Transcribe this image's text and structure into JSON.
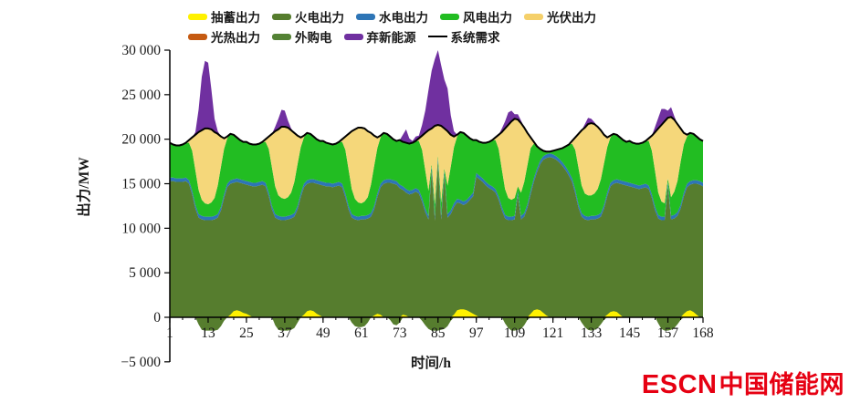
{
  "logo": {
    "escn": "ESCN",
    "chinese": "中国储能网"
  },
  "colors": {
    "axis": "#000000",
    "tick_text": "#1a1a1a",
    "logo_red": "#E60012",
    "pumped": "#FFF100",
    "thermal": "#567D2E",
    "hydro": "#2E75B6",
    "wind": "#22BD22",
    "pv": "#F5D77A",
    "csp": "#C55A11",
    "purchased": "#548235",
    "curtailed": "#7030A0",
    "demand": "#000000"
  },
  "legend": {
    "rows": [
      [
        {
          "label": "抽蓄出力",
          "color": "#FFF100",
          "shape": "box"
        },
        {
          "label": "火电出力",
          "color": "#567D2E",
          "shape": "box"
        },
        {
          "label": "水电出力",
          "color": "#2E75B6",
          "shape": "box"
        },
        {
          "label": "风电出力",
          "color": "#22BD22",
          "shape": "box"
        },
        {
          "label": "光伏出力",
          "color": "#F5D06A",
          "shape": "box"
        }
      ],
      [
        {
          "label": "光热出力",
          "color": "#C55A11",
          "shape": "box"
        },
        {
          "label": "外购电",
          "color": "#548235",
          "shape": "box"
        },
        {
          "label": "弃新能源",
          "color": "#7030A0",
          "shape": "box"
        },
        {
          "label": "系统需求",
          "color": "#000000",
          "shape": "line"
        }
      ]
    ]
  },
  "chart_data": {
    "type": "area",
    "stacked": true,
    "title": "",
    "xlabel": "时间/h",
    "ylabel": "出力/MW",
    "x_start": 1,
    "x_count": 168,
    "xlim": [
      1,
      168
    ],
    "ylim": [
      -5000,
      30000
    ],
    "grid": false,
    "legend_position": "top",
    "x_ticks": [
      1,
      13,
      25,
      37,
      49,
      61,
      73,
      85,
      97,
      109,
      121,
      133,
      145,
      157,
      168
    ],
    "x_minor_tick_step": 4,
    "y_ticks": [
      {
        "value": 30000,
        "label": "30 000"
      },
      {
        "value": 25000,
        "label": "25 000"
      },
      {
        "value": 20000,
        "label": "20 000"
      },
      {
        "value": 15000,
        "label": "15 000"
      },
      {
        "value": 10000,
        "label": "10 000"
      },
      {
        "value": 5000,
        "label": "5 000"
      },
      {
        "value": 0,
        "label": "0"
      },
      {
        "value": -5000,
        "label": "−5 000"
      }
    ],
    "series": [
      {
        "key": "pumped",
        "name": "抽蓄出力",
        "role": "pumped",
        "color": "#FFF100",
        "values": [
          0,
          0,
          0,
          0,
          0,
          0,
          0,
          0,
          0,
          -800,
          -1400,
          -1500,
          -1500,
          -1500,
          -1500,
          -1400,
          -1000,
          -400,
          0,
          300,
          700,
          800,
          700,
          500,
          400,
          200,
          0,
          0,
          0,
          0,
          0,
          0,
          0,
          -900,
          -1400,
          -1500,
          -1500,
          -1500,
          -1400,
          -1200,
          -600,
          0,
          300,
          700,
          800,
          700,
          400,
          200,
          0,
          0,
          0,
          0,
          0,
          0,
          0,
          0,
          0,
          -600,
          -1000,
          -1100,
          -1100,
          -1000,
          -600,
          0,
          200,
          400,
          300,
          0,
          0,
          -300,
          -800,
          -900,
          -600,
          300,
          200,
          0,
          0,
          0,
          0,
          -400,
          -900,
          -1300,
          -1500,
          -1500,
          -1500,
          -1400,
          -1300,
          -1000,
          -400,
          300,
          800,
          900,
          900,
          800,
          600,
          400,
          200,
          0,
          0,
          0,
          0,
          0,
          0,
          0,
          0,
          -700,
          -1200,
          -1500,
          -1500,
          -1400,
          -1300,
          -900,
          -300,
          400,
          800,
          900,
          800,
          500,
          200,
          0,
          0,
          0,
          0,
          0,
          0,
          0,
          0,
          0,
          0,
          -600,
          -1100,
          -1400,
          -1500,
          -1400,
          -1200,
          -800,
          -300,
          300,
          600,
          700,
          600,
          300,
          0,
          0,
          0,
          0,
          0,
          0,
          0,
          0,
          0,
          0,
          0,
          -700,
          -1300,
          -1500,
          -1500,
          -1400,
          -1200,
          -800,
          -300,
          400,
          700,
          800,
          600,
          300,
          0,
          0
        ]
      },
      {
        "key": "thermal",
        "name": "火电出力",
        "role": "stack",
        "color": "#567D2E",
        "values": [
          15300,
          15300,
          15200,
          15200,
          15200,
          15300,
          15000,
          13800,
          12200,
          11200,
          11000,
          10900,
          10900,
          10900,
          11000,
          11200,
          12000,
          13400,
          14600,
          15000,
          15100,
          15200,
          15100,
          15000,
          14900,
          14800,
          14700,
          14700,
          14800,
          14900,
          14700,
          13600,
          12100,
          11200,
          11000,
          10900,
          10900,
          11000,
          11100,
          11300,
          12100,
          13500,
          14600,
          15000,
          15100,
          15100,
          15000,
          14900,
          14800,
          14700,
          14700,
          14600,
          14700,
          14800,
          14600,
          13500,
          12100,
          11200,
          11000,
          10900,
          11000,
          11000,
          11100,
          11300,
          12100,
          13500,
          14600,
          15000,
          15100,
          15100,
          15000,
          14900,
          14500,
          14300,
          14000,
          13800,
          13900,
          14100,
          13900,
          13000,
          11800,
          11000,
          16500,
          10900,
          17500,
          11000,
          16000,
          11200,
          11600,
          12400,
          12900,
          12800,
          12600,
          12800,
          13200,
          13600,
          15800,
          15500,
          15200,
          14800,
          14500,
          14300,
          14000,
          13200,
          12000,
          11100,
          10900,
          10900,
          11000,
          13800,
          11000,
          11300,
          12300,
          13800,
          15200,
          16300,
          17200,
          17700,
          17900,
          18000,
          17900,
          17700,
          17400,
          17000,
          16500,
          15900,
          15200,
          13900,
          12300,
          11300,
          11000,
          10900,
          11000,
          11000,
          11100,
          11300,
          12200,
          13600,
          14700,
          15000,
          15100,
          15000,
          14900,
          14800,
          14700,
          14600,
          14500,
          14400,
          14500,
          14600,
          14400,
          13400,
          12000,
          11100,
          10900,
          10900,
          14800,
          11000,
          11100,
          11400,
          12200,
          13600,
          14600,
          14900,
          15000,
          15000,
          14900,
          14700
        ]
      },
      {
        "key": "hydro",
        "name": "水电出力",
        "role": "stack",
        "color": "#2E75B6",
        "constant": 400
      },
      {
        "key": "wind",
        "name": "风电出力",
        "role": "stack",
        "color": "#22BD22",
        "values": [
          3900,
          3700,
          3700,
          3700,
          3800,
          3900,
          4200,
          4500,
          3900,
          2700,
          1800,
          1500,
          1400,
          1600,
          2000,
          3200,
          4500,
          5100,
          5100,
          5200,
          5000,
          4600,
          4400,
          4300,
          4400,
          4300,
          4300,
          4300,
          4300,
          4400,
          4600,
          4900,
          4300,
          3100,
          2300,
          2100,
          2000,
          2100,
          2500,
          3500,
          4700,
          5200,
          5200,
          5300,
          5100,
          4800,
          4600,
          4500,
          4600,
          4500,
          4400,
          4400,
          4400,
          4500,
          4700,
          4900,
          4100,
          2800,
          1900,
          1600,
          1400,
          1600,
          2000,
          3200,
          4500,
          5100,
          5200,
          5300,
          5100,
          4800,
          4600,
          4500,
          5000,
          5000,
          5200,
          5300,
          5300,
          5300,
          5500,
          5400,
          4300,
          2800,
          300,
          1400,
          300,
          1500,
          300,
          3200,
          4900,
          6300,
          7000,
          7600,
          7700,
          7200,
          6500,
          5900,
          3700,
          3800,
          4000,
          4400,
          4800,
          5200,
          5500,
          5300,
          4200,
          2900,
          2100,
          1900,
          2000,
          500,
          2600,
          3500,
          4400,
          4800,
          3900,
          2500,
          1300,
          600,
          300,
          200,
          400,
          700,
          1100,
          1600,
          2300,
          3100,
          3900,
          4500,
          4100,
          3100,
          2500,
          2400,
          2300,
          2500,
          2900,
          3800,
          4700,
          5100,
          5100,
          5200,
          5000,
          4800,
          4600,
          4500,
          4700,
          4600,
          4600,
          4700,
          4700,
          4800,
          5000,
          4900,
          4000,
          2500,
          1700,
          1500,
          400,
          2100,
          2600,
          3500,
          4900,
          5400,
          5300,
          5400,
          5200,
          4900,
          4700,
          4700
        ]
      },
      {
        "key": "pv",
        "name": "光伏出力",
        "role": "stack",
        "color": "#F5D77A",
        "values": [
          0,
          0,
          0,
          0,
          0,
          0,
          300,
          1500,
          4000,
          6500,
          7800,
          8400,
          8500,
          8200,
          7400,
          5800,
          3400,
          1200,
          200,
          0,
          0,
          0,
          0,
          0,
          0,
          0,
          0,
          0,
          0,
          0,
          300,
          1400,
          3800,
          6200,
          7400,
          8000,
          8100,
          7800,
          7000,
          5500,
          3200,
          1100,
          200,
          0,
          0,
          0,
          0,
          0,
          0,
          0,
          0,
          0,
          0,
          0,
          300,
          1500,
          4000,
          6500,
          7800,
          8400,
          8500,
          8200,
          7400,
          5800,
          3400,
          1200,
          200,
          0,
          0,
          0,
          0,
          0,
          0,
          0,
          0,
          0,
          0,
          0,
          300,
          1600,
          4200,
          6800,
          4000,
          8800,
          3400,
          8600,
          4500,
          6100,
          3600,
          1200,
          200,
          0,
          0,
          0,
          0,
          0,
          0,
          0,
          0,
          0,
          0,
          0,
          300,
          1600,
          4200,
          6800,
          8200,
          8800,
          8900,
          7500,
          7800,
          6100,
          3600,
          1200,
          200,
          0,
          0,
          0,
          0,
          0,
          0,
          0,
          0,
          0,
          0,
          0,
          300,
          1400,
          3800,
          6200,
          7400,
          8000,
          8100,
          7800,
          7000,
          5500,
          3200,
          1100,
          200,
          0,
          0,
          0,
          0,
          0,
          0,
          0,
          0,
          0,
          0,
          0,
          300,
          1700,
          4400,
          7200,
          8600,
          9200,
          6800,
          9000,
          8100,
          6400,
          3700,
          1300,
          200,
          0,
          0,
          0,
          0,
          0
        ]
      },
      {
        "key": "csp",
        "name": "光热出力",
        "role": "stack",
        "color": "#C55A11",
        "constant": 0
      },
      {
        "key": "purchased",
        "name": "外购电",
        "role": "stack",
        "color": "#548235",
        "constant": 0
      },
      {
        "key": "curtailed",
        "name": "弃新能源",
        "role": "stack",
        "color": "#7030A0",
        "values": [
          0,
          0,
          0,
          0,
          0,
          0,
          0,
          0,
          300,
          2500,
          6000,
          7600,
          7400,
          4500,
          1500,
          300,
          0,
          0,
          0,
          0,
          0,
          0,
          0,
          0,
          0,
          0,
          0,
          0,
          0,
          0,
          0,
          0,
          0,
          500,
          1200,
          1900,
          1800,
          800,
          200,
          0,
          0,
          0,
          0,
          0,
          0,
          0,
          0,
          0,
          0,
          0,
          0,
          0,
          0,
          0,
          0,
          0,
          0,
          0,
          0,
          0,
          0,
          0,
          0,
          0,
          0,
          0,
          0,
          0,
          0,
          0,
          0,
          0,
          0,
          800,
          1500,
          600,
          200,
          500,
          300,
          1200,
          2500,
          4500,
          6500,
          7500,
          8400,
          6800,
          5500,
          4800,
          2200,
          600,
          0,
          0,
          0,
          0,
          0,
          0,
          0,
          0,
          0,
          0,
          0,
          0,
          0,
          0,
          400,
          800,
          1400,
          1200,
          500,
          600,
          300,
          0,
          0,
          0,
          0,
          0,
          0,
          0,
          0,
          0,
          0,
          0,
          0,
          0,
          0,
          0,
          0,
          0,
          0,
          0,
          400,
          700,
          500,
          200,
          0,
          0,
          0,
          0,
          0,
          0,
          0,
          0,
          0,
          0,
          0,
          0,
          0,
          0,
          0,
          0,
          0,
          0,
          600,
          1200,
          1800,
          1400,
          800,
          1100,
          400,
          0,
          0,
          0,
          0,
          0,
          0,
          0,
          0,
          0
        ]
      },
      {
        "key": "demand",
        "name": "系统需求",
        "role": "line",
        "color": "#000000",
        "values": [
          19600,
          19400,
          19300,
          19300,
          19400,
          19600,
          19900,
          20200,
          20500,
          20800,
          21000,
          21200,
          21200,
          21100,
          20800,
          20600,
          20300,
          20100,
          20300,
          20600,
          20500,
          20200,
          19900,
          19700,
          19700,
          19500,
          19400,
          19400,
          19500,
          19700,
          20000,
          20300,
          20600,
          20900,
          21100,
          21400,
          21400,
          21300,
          21000,
          20700,
          20400,
          20200,
          20400,
          20700,
          20600,
          20300,
          20000,
          19800,
          19800,
          19600,
          19500,
          19400,
          19500,
          19700,
          20000,
          20300,
          20600,
          20900,
          21100,
          21300,
          21300,
          21200,
          20900,
          20700,
          20400,
          20200,
          20400,
          20700,
          20600,
          20300,
          20000,
          19800,
          19900,
          19700,
          19600,
          19500,
          19600,
          19800,
          20100,
          20400,
          20700,
          21000,
          21200,
          21500,
          21600,
          21500,
          21200,
          20900,
          20500,
          20300,
          20500,
          20800,
          20700,
          20400,
          20100,
          19900,
          19900,
          19700,
          19600,
          19600,
          19700,
          19900,
          20200,
          20500,
          20800,
          21200,
          21600,
          22000,
          22300,
          22200,
          21800,
          21300,
          20700,
          20200,
          19700,
          19200,
          18900,
          18700,
          18600,
          18600,
          18700,
          18800,
          18900,
          19000,
          19200,
          19400,
          19800,
          20200,
          20600,
          21000,
          21300,
          21700,
          21800,
          21700,
          21400,
          21000,
          20500,
          20200,
          20400,
          20600,
          20500,
          20200,
          19900,
          19700,
          19800,
          19600,
          19500,
          19500,
          19600,
          19800,
          20100,
          20400,
          20800,
          21200,
          21600,
          22000,
          22400,
          22500,
          22200,
          21700,
          21200,
          20700,
          20500,
          20700,
          20600,
          20300,
          20000,
          19800
        ]
      }
    ]
  }
}
